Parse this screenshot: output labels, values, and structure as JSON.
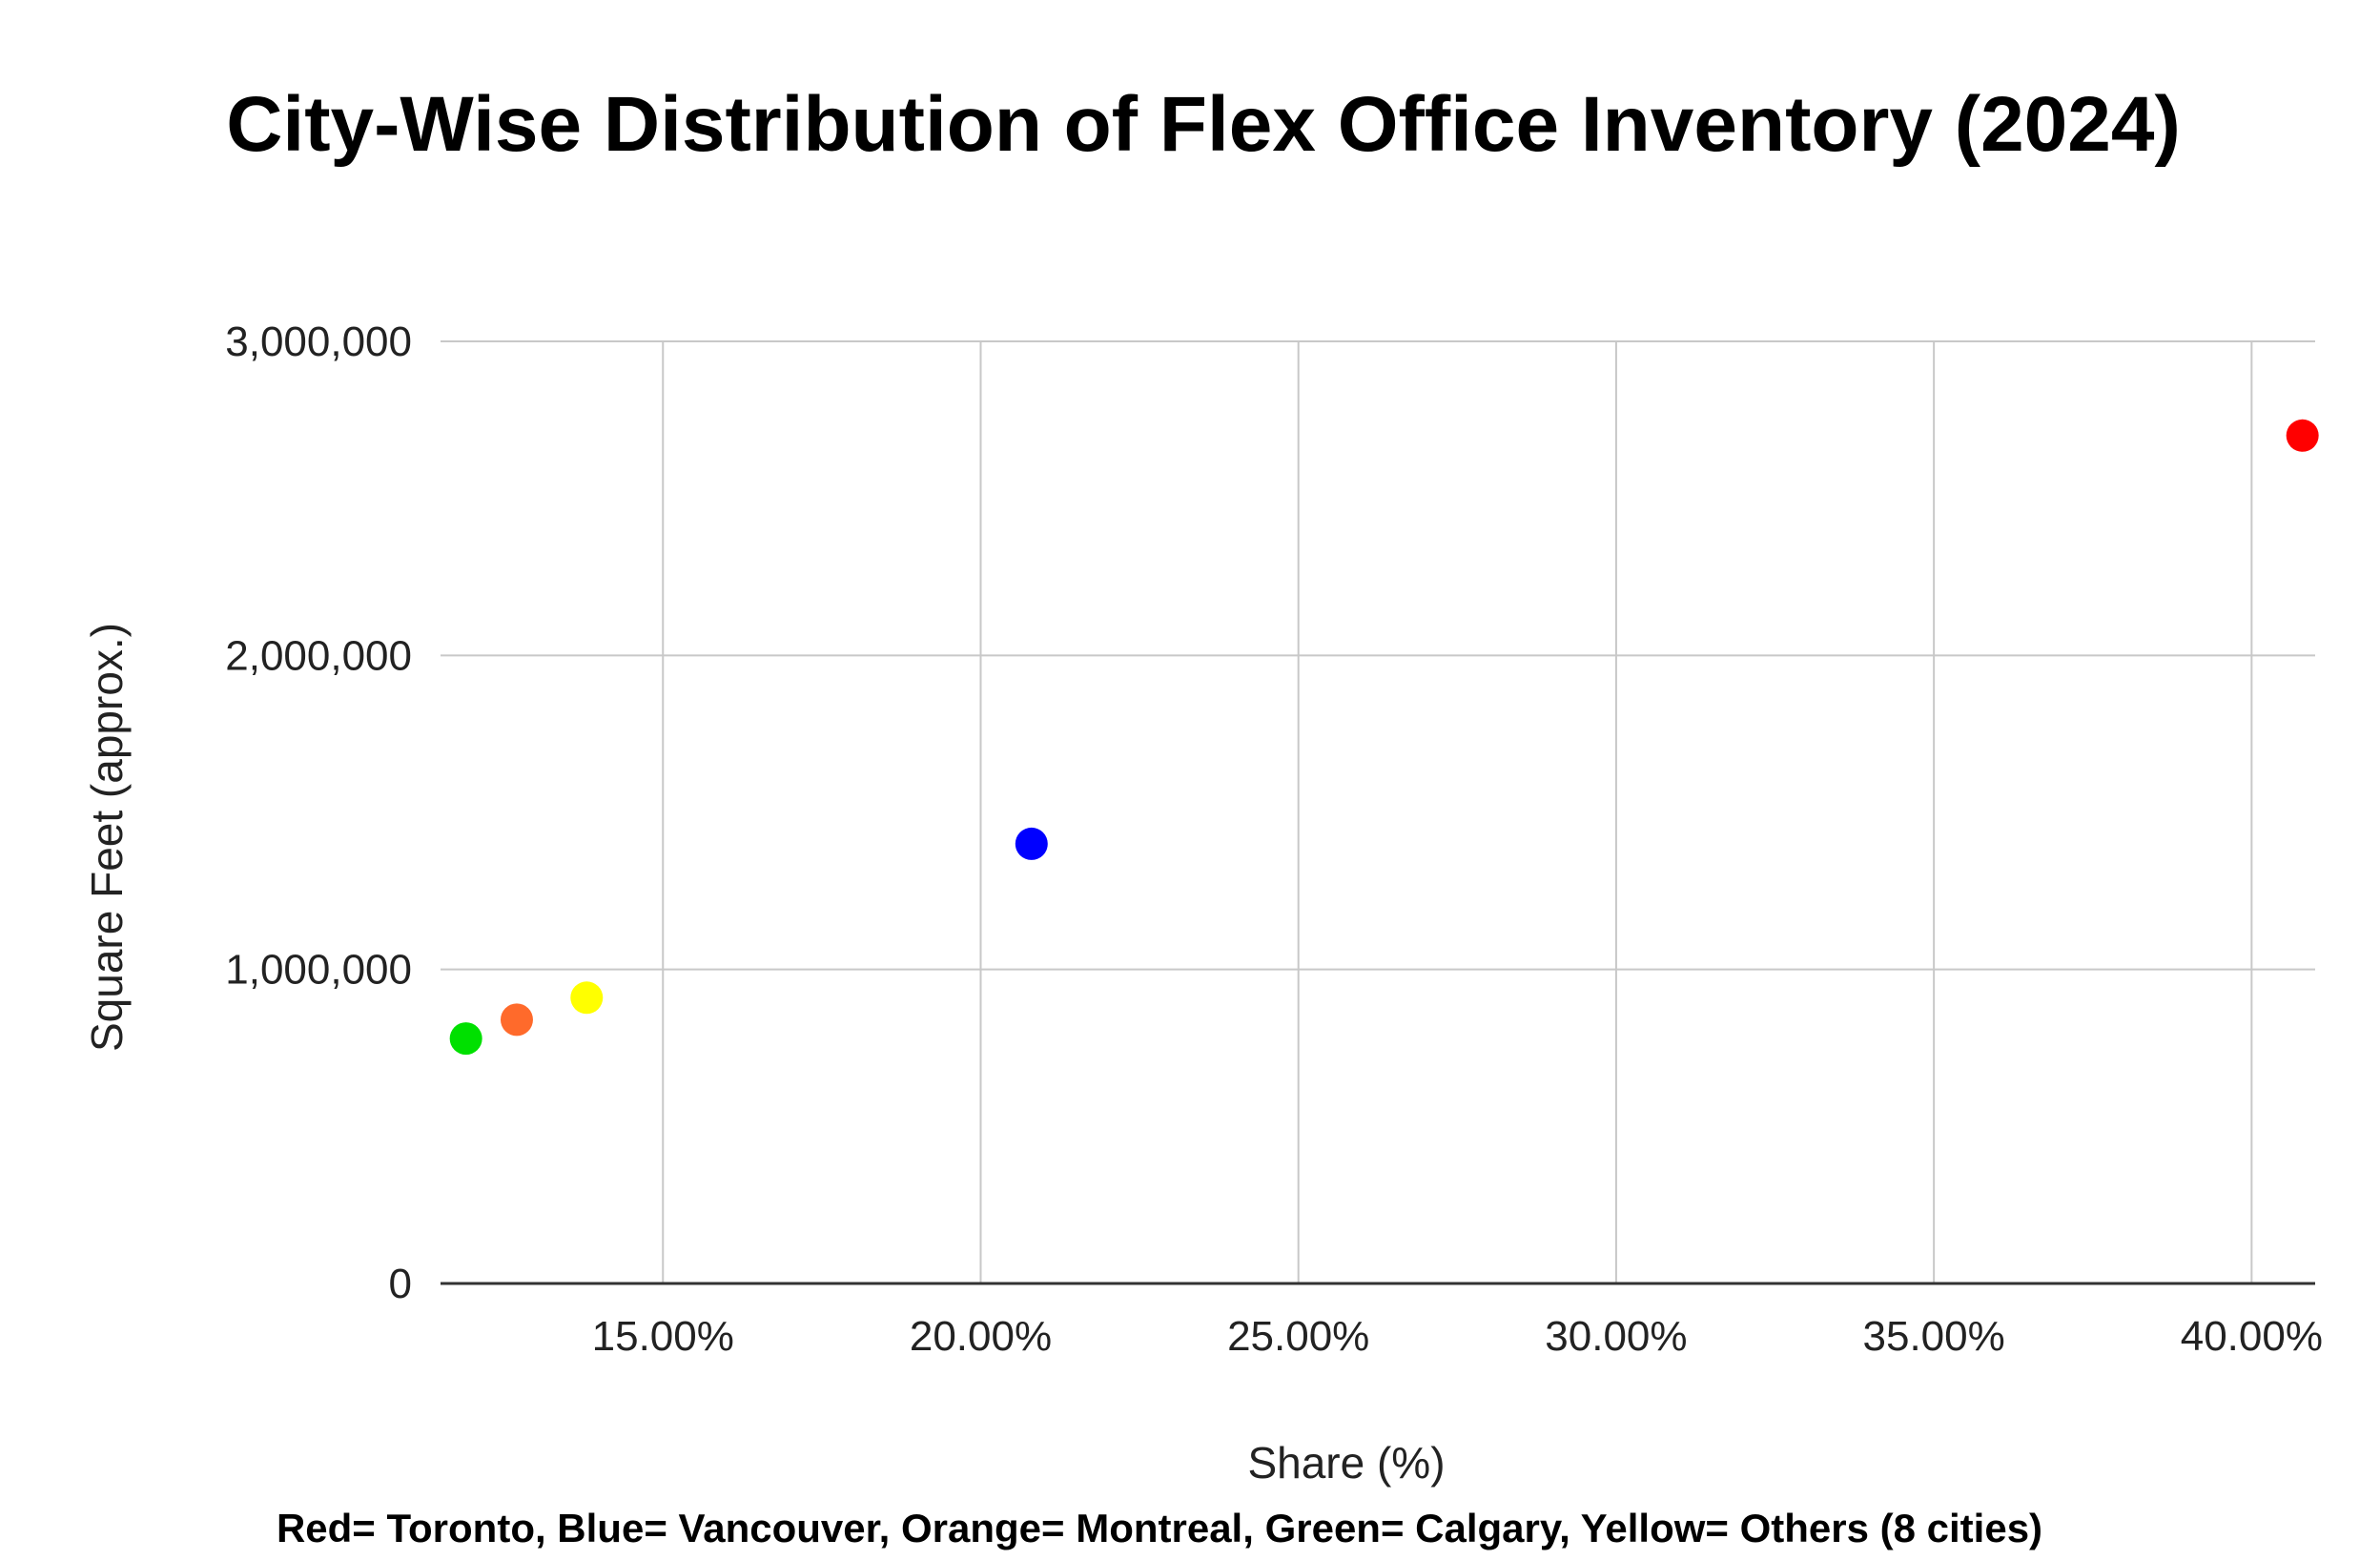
{
  "chart_data": {
    "type": "scatter",
    "title": "City-Wise Distribution of Flex Office Inventory (2024)",
    "xlabel": "Share (%)",
    "ylabel": "Square Feet (approx.)",
    "xlim": [
      0.115,
      0.41
    ],
    "ylim": [
      0,
      3000000
    ],
    "x_ticks": [
      0.15,
      0.2,
      0.25,
      0.3,
      0.35,
      0.4
    ],
    "x_tick_labels": [
      "15.00%",
      "20.00%",
      "25.00%",
      "30.00%",
      "35.00%",
      "40.00%"
    ],
    "y_ticks": [
      0,
      1000000,
      2000000,
      3000000
    ],
    "y_tick_labels": [
      "0",
      "1,000,000",
      "2,000,000",
      "3,000,000"
    ],
    "grid": true,
    "note": "Red= Toronto, Blue= Vancouver, Orange= Montreal, Green= Calgary, Yellow= Others (8 cities)",
    "points": [
      {
        "x": 0.408,
        "y": 2700000,
        "color": "#ff0000"
      },
      {
        "x": 0.208,
        "y": 1400000,
        "color": "#0000ff"
      },
      {
        "x": 0.127,
        "y": 840000,
        "color": "#ff6a2b"
      },
      {
        "x": 0.119,
        "y": 780000,
        "color": "#00e000"
      },
      {
        "x": 0.138,
        "y": 910000,
        "color": "#ffff00"
      }
    ]
  }
}
